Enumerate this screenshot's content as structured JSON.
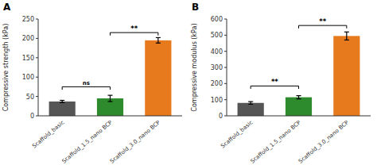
{
  "chart_data": [
    {
      "type": "bar",
      "title": "A",
      "categories": [
        "Scaffold_basic",
        "Scaffold_1.5_nano BCP",
        "Scaffold_3.0_nano BCP"
      ],
      "values": [
        37,
        45,
        195
      ],
      "errors": [
        3,
        8,
        7
      ],
      "colors": [
        "#555555",
        "#2d8a2d",
        "#e87a1e"
      ],
      "ylabel": "Compressive strength (kPa)",
      "ylim": [
        0,
        250
      ],
      "yticks": [
        0,
        50,
        100,
        150,
        200,
        250
      ],
      "grid": false,
      "annotations": [
        {
          "x1": 0,
          "x2": 1,
          "y": 75,
          "label": "ns"
        },
        {
          "x1": 1,
          "x2": 2,
          "y": 215,
          "label": "**"
        }
      ]
    },
    {
      "type": "bar",
      "title": "B",
      "categories": [
        "Scaffold_basic",
        "Scaffold_1.5_nano BCP",
        "Scaffold_3.0_nano BCP"
      ],
      "values": [
        80,
        115,
        495
      ],
      "errors": [
        8,
        10,
        25
      ],
      "colors": [
        "#555555",
        "#2d8a2d",
        "#e87a1e"
      ],
      "ylabel": "Compressive modulus (kPa)",
      "ylim": [
        0,
        600
      ],
      "yticks": [
        0,
        100,
        200,
        300,
        400,
        500,
        600
      ],
      "grid": false,
      "annotations": [
        {
          "x1": 0,
          "x2": 1,
          "y": 185,
          "label": "**"
        },
        {
          "x1": 1,
          "x2": 2,
          "y": 560,
          "label": "**"
        }
      ]
    }
  ]
}
